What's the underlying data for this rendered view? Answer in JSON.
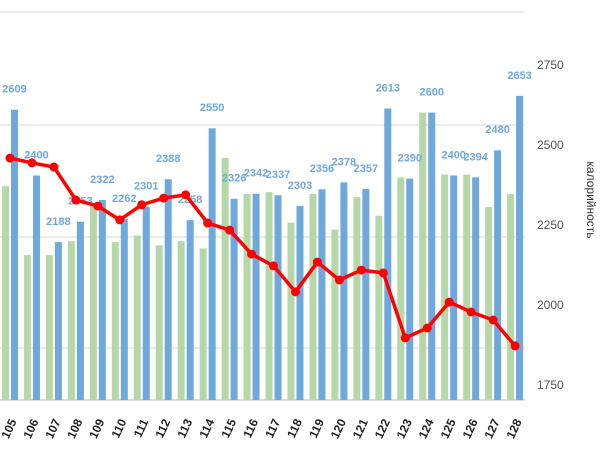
{
  "chart_data": {
    "type": "bar-line",
    "categories": [
      "105",
      "106",
      "107",
      "108",
      "109",
      "110",
      "111",
      "112",
      "113",
      "114",
      "115",
      "116",
      "117",
      "118",
      "119",
      "120",
      "121",
      "122",
      "123",
      "124",
      "125",
      "126",
      "127",
      "128"
    ],
    "ylim": [
      1686,
      2958
    ],
    "y2lim": [
      1706,
      2956
    ],
    "y2ticks": [
      1750,
      2000,
      2250,
      2500,
      2750
    ],
    "y2_label": "калорийность",
    "series": [
      {
        "type": "bar",
        "color": "#b6d7a8",
        "values": [
          2366,
          2147,
          2147,
          2191,
          2303,
          2188,
          2209,
          2178,
          2191,
          2168,
          2456,
          2341,
          2347,
          2250,
          2341,
          2228,
          2331,
          2272,
          2394,
          2600,
          2403,
          2403,
          2300,
          2341
        ]
      },
      {
        "type": "bar",
        "color": "#6fa8dc",
        "values": [
          2609,
          2400,
          2188,
          2253,
          2322,
          2262,
          2301,
          2388,
          2258,
          2550,
          2326,
          2342,
          2337,
          2303,
          2356,
          2378,
          2357,
          2613,
          2390,
          2600,
          2400,
          2394,
          2480,
          2653
        ]
      },
      {
        "type": "line",
        "axis": "y2",
        "color": "#ff0000",
        "values": [
          2462,
          2447,
          2434,
          2331,
          2312,
          2269,
          2316,
          2337,
          2347,
          2259,
          2237,
          2162,
          2125,
          2044,
          2137,
          2081,
          2112,
          2103,
          1900,
          1931,
          2012,
          1981,
          1956,
          1875
        ]
      }
    ]
  }
}
